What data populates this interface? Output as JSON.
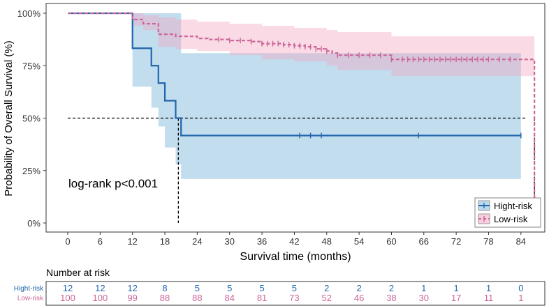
{
  "chart_data": {
    "type": "line",
    "subtype": "kaplan-meier",
    "xlabel": "Survival time (months)",
    "ylabel": "Probability of Overall Survival (%)",
    "xlim": [
      0,
      87
    ],
    "ylim": [
      0,
      100
    ],
    "xticks": [
      0,
      6,
      12,
      18,
      24,
      30,
      36,
      42,
      48,
      54,
      60,
      66,
      72,
      78,
      84
    ],
    "xtick_labels": [
      "0",
      "6",
      "12",
      "18",
      "24",
      "30",
      "36",
      "42",
      "48",
      "54",
      "60",
      "66",
      "72",
      "78",
      "84"
    ],
    "yticks": [
      0,
      25,
      50,
      75,
      100
    ],
    "ytick_labels": [
      "0%",
      "25%",
      "50%",
      "75%",
      "100%"
    ],
    "annotation": "log-rank p<0.001",
    "legend_position": "bottom-right",
    "median_line": {
      "y": 50,
      "x_end": 85,
      "drops": [
        {
          "series": "Hight-risk",
          "x": 20.5
        },
        {
          "series": "Low-risk",
          "x": 86.5
        }
      ]
    },
    "series": [
      {
        "name": "Hight-risk",
        "color": "#2166ac",
        "band_color": "#6baed6",
        "dash": "solid",
        "steps": [
          [
            0,
            100
          ],
          [
            12,
            83.3
          ],
          [
            15.5,
            75
          ],
          [
            16.8,
            66.7
          ],
          [
            18,
            58.3
          ],
          [
            20,
            50
          ],
          [
            21,
            41.7
          ],
          [
            84,
            41.7
          ]
        ],
        "ci": [
          [
            0,
            100,
            100
          ],
          [
            12,
            100,
            65
          ],
          [
            15.5,
            100,
            55
          ],
          [
            16.8,
            100,
            46
          ],
          [
            18,
            100,
            36
          ],
          [
            20,
            100,
            28
          ],
          [
            21,
            81,
            21
          ],
          [
            84,
            81,
            21
          ]
        ],
        "censor_x": [
          43,
          45,
          47,
          65,
          84
        ]
      },
      {
        "name": "Low-risk",
        "color": "#cc6699",
        "band_color": "#f4a6c2",
        "dash": "dashed",
        "steps": [
          [
            0,
            100
          ],
          [
            12,
            97
          ],
          [
            14,
            95
          ],
          [
            16.8,
            90
          ],
          [
            20,
            89
          ],
          [
            24,
            88
          ],
          [
            26,
            87.5
          ],
          [
            30,
            87
          ],
          [
            34,
            86.5
          ],
          [
            36,
            85.5
          ],
          [
            40,
            85
          ],
          [
            42,
            84.5
          ],
          [
            44,
            84
          ],
          [
            46,
            83
          ],
          [
            48,
            82
          ],
          [
            49,
            81
          ],
          [
            50,
            80
          ],
          [
            60,
            78
          ],
          [
            86.5,
            78
          ],
          [
            86.5,
            0
          ]
        ],
        "ci": [
          [
            0,
            100,
            100
          ],
          [
            12,
            100,
            94
          ],
          [
            14,
            99,
            92
          ],
          [
            16.8,
            98,
            84
          ],
          [
            20,
            97,
            83
          ],
          [
            24,
            96,
            82
          ],
          [
            30,
            95,
            80
          ],
          [
            36,
            94,
            78
          ],
          [
            42,
            93,
            77
          ],
          [
            48,
            92,
            75
          ],
          [
            50,
            91,
            73
          ],
          [
            60,
            89,
            70
          ],
          [
            86.5,
            88,
            70
          ]
        ],
        "censor_x": [
          28,
          30,
          32,
          34,
          36,
          37,
          38,
          39,
          40,
          41,
          42,
          43,
          44,
          45,
          46,
          47,
          48,
          50,
          52,
          54,
          56,
          58,
          60,
          62,
          63,
          64,
          65,
          66,
          67,
          68,
          69,
          70,
          71,
          72,
          73,
          74,
          75,
          76,
          77,
          78,
          80,
          82
        ]
      }
    ],
    "risk_table": {
      "title": "Number at risk",
      "times": [
        0,
        6,
        12,
        18,
        24,
        30,
        36,
        42,
        48,
        54,
        60,
        66,
        72,
        78,
        84
      ],
      "rows": [
        {
          "label": "Hight-risk",
          "color": "#2166ac",
          "counts": [
            "12",
            "12",
            "12",
            "8",
            "5",
            "5",
            "5",
            "5",
            "2",
            "2",
            "2",
            "1",
            "1",
            "1",
            "0"
          ]
        },
        {
          "label": "Low-risk",
          "color": "#cc6699",
          "counts": [
            "100",
            "100",
            "99",
            "88",
            "88",
            "84",
            "81",
            "73",
            "52",
            "46",
            "38",
            "30",
            "17",
            "11",
            "1"
          ]
        }
      ]
    }
  }
}
